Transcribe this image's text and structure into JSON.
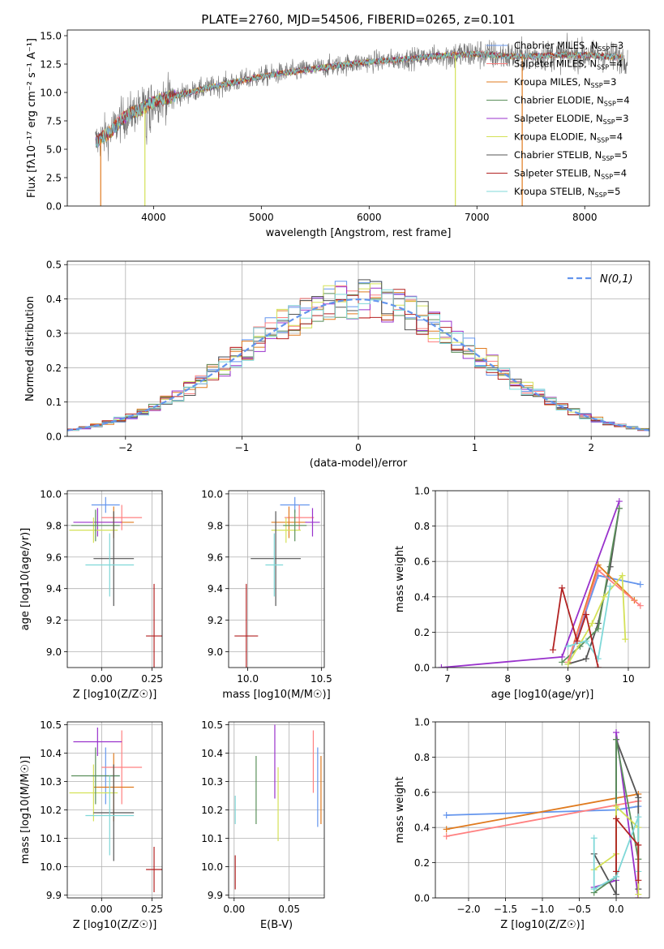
{
  "chart_data": [
    {
      "id": "spectrum",
      "type": "line",
      "title": "PLATE=2760, MJD=54506, FIBERID=0265, z=0.101",
      "xlabel": "wavelength [Angstrom, rest frame]",
      "ylabel": "Flux [fλ10⁻¹⁷ erg cm⁻² s⁻¹ A⁻¹]",
      "xlim": [
        3200,
        8600
      ],
      "ylim": [
        0,
        15.5
      ],
      "xticks": [
        4000,
        5000,
        6000,
        7000,
        8000
      ],
      "yticks": [
        0.0,
        2.5,
        5.0,
        7.5,
        10.0,
        12.5,
        15.0
      ],
      "grid": false,
      "legend_position": "top-right",
      "continuum": {
        "x": [
          3460,
          3600,
          3700,
          3800,
          3900,
          4000,
          4200,
          4500,
          4800,
          5000,
          5200,
          5500,
          5800,
          6000,
          6300,
          6600,
          7000,
          7300,
          7500,
          7800,
          8000,
          8200,
          8400
        ],
        "y": [
          5.6,
          6.5,
          7.6,
          8.2,
          8.6,
          9.2,
          9.7,
          10.4,
          11.0,
          11.4,
          11.7,
          12.1,
          12.5,
          12.7,
          12.9,
          13.2,
          13.4,
          13.2,
          13.2,
          13.3,
          13.3,
          13.2,
          13.0
        ]
      },
      "series": [
        {
          "name": "Chabrier MILES, N_SSP=3",
          "color": "#6495ed"
        },
        {
          "name": "Salpeter MILES, N_SSP=4",
          "color": "#ff8080"
        },
        {
          "name": "Kroupa MILES, N_SSP=3",
          "color": "#e07b1f"
        },
        {
          "name": "Chabrier ELODIE, N_SSP=4",
          "color": "#5a8f5a"
        },
        {
          "name": "Salpeter ELODIE, N_SSP=3",
          "color": "#9932cc"
        },
        {
          "name": "Kroupa ELODIE, N_SSP=4",
          "color": "#d4e157"
        },
        {
          "name": "Chabrier STELIB, N_SSP=5",
          "color": "#555555"
        },
        {
          "name": "Salpeter STELIB, N_SSP=4",
          "color": "#b22222"
        },
        {
          "name": "Kroupa STELIB, N_SSP=5",
          "color": "#7fd8d8"
        }
      ]
    },
    {
      "id": "residuals",
      "type": "histogram",
      "xlabel": "(data-model)/error",
      "ylabel": "Normed distribution",
      "xlim": [
        -2.5,
        2.5
      ],
      "ylim": [
        0,
        0.51
      ],
      "xticks": [
        -2,
        -1,
        0,
        1,
        2
      ],
      "yticks": [
        0.0,
        0.1,
        0.2,
        0.3,
        0.4,
        0.5
      ],
      "grid": true,
      "legend_position": "top-right",
      "reference": {
        "name": "N(0,1)",
        "color": "#6495ed",
        "mean": 0,
        "sigma": 1
      }
    },
    {
      "id": "age_vs_z",
      "type": "errorbar",
      "xlabel": "Z [log10(Z/Z☉)]",
      "ylabel": "age [log10(age/yr)]",
      "xlim": [
        -0.17,
        0.3
      ],
      "ylim": [
        8.9,
        10.02
      ],
      "xticks": [
        0.0,
        0.25
      ],
      "yticks": [
        9.0,
        9.2,
        9.4,
        9.6,
        9.8,
        10.0
      ],
      "grid": true,
      "points": [
        {
          "x": 0.02,
          "xerr": 0.07,
          "y": 9.93,
          "yerr": 0.05,
          "color": "#6495ed"
        },
        {
          "x": 0.1,
          "xerr": 0.1,
          "y": 9.85,
          "yerr": 0.08,
          "color": "#ff8080"
        },
        {
          "x": 0.06,
          "xerr": 0.1,
          "y": 9.82,
          "yerr": 0.1,
          "color": "#e07b1f"
        },
        {
          "x": -0.02,
          "xerr": 0.12,
          "y": 9.82,
          "yerr": 0.09,
          "color": "#9932cc"
        },
        {
          "x": -0.04,
          "xerr": 0.12,
          "y": 9.77,
          "yerr": 0.08,
          "color": "#d4e157"
        },
        {
          "x": -0.03,
          "xerr": 0.12,
          "y": 9.8,
          "yerr": 0.1,
          "color": "#5a8f5a"
        },
        {
          "x": 0.06,
          "xerr": 0.1,
          "y": 9.59,
          "yerr": 0.3,
          "color": "#555555"
        },
        {
          "x": 0.04,
          "xerr": 0.12,
          "y": 9.55,
          "yerr": 0.2,
          "color": "#7fd8d8"
        },
        {
          "x": 0.26,
          "xerr": 0.04,
          "y": 9.1,
          "yerr": 0.33,
          "color": "#b22222"
        }
      ]
    },
    {
      "id": "age_vs_mass",
      "type": "errorbar",
      "xlabel": "mass [log10(M/M☉)]",
      "ylabel": "",
      "xlim": [
        9.87,
        10.52
      ],
      "ylim": [
        8.9,
        10.02
      ],
      "xticks": [
        10.0,
        10.5
      ],
      "yticks": [
        9.0,
        9.2,
        9.4,
        9.6,
        9.8,
        10.0
      ],
      "grid": true,
      "points": [
        {
          "x": 10.32,
          "xerr": 0.1,
          "y": 9.93,
          "yerr": 0.05,
          "color": "#6495ed"
        },
        {
          "x": 10.35,
          "xerr": 0.1,
          "y": 9.85,
          "yerr": 0.08,
          "color": "#ff8080"
        },
        {
          "x": 10.28,
          "xerr": 0.12,
          "y": 9.82,
          "yerr": 0.1,
          "color": "#e07b1f"
        },
        {
          "x": 10.44,
          "xerr": 0.05,
          "y": 9.82,
          "yerr": 0.09,
          "color": "#9932cc"
        },
        {
          "x": 10.26,
          "xerr": 0.1,
          "y": 9.77,
          "yerr": 0.08,
          "color": "#d4e157"
        },
        {
          "x": 10.32,
          "xerr": 0.08,
          "y": 9.8,
          "yerr": 0.1,
          "color": "#5a8f5a"
        },
        {
          "x": 10.19,
          "xerr": 0.17,
          "y": 9.59,
          "yerr": 0.3,
          "color": "#555555"
        },
        {
          "x": 10.18,
          "xerr": 0.06,
          "y": 9.55,
          "yerr": 0.2,
          "color": "#7fd8d8"
        },
        {
          "x": 9.99,
          "xerr": 0.08,
          "y": 9.1,
          "yerr": 0.33,
          "color": "#b22222"
        }
      ]
    },
    {
      "id": "weight_vs_age",
      "type": "line",
      "xlabel": "age [log10(age/yr)]",
      "ylabel": "mass weight",
      "xlim": [
        6.8,
        10.35
      ],
      "ylim": [
        0,
        1.0
      ],
      "xticks": [
        7,
        8,
        9,
        10
      ],
      "yticks": [
        0.0,
        0.2,
        0.4,
        0.6,
        0.8,
        1.0
      ],
      "grid": true,
      "series": [
        {
          "color": "#9932cc",
          "x": [
            6.9,
            8.9,
            9.85
          ],
          "y": [
            0.0,
            0.06,
            0.94
          ]
        },
        {
          "color": "#555555",
          "x": [
            9.0,
            9.3,
            9.5,
            9.7,
            9.85
          ],
          "y": [
            0.02,
            0.05,
            0.25,
            0.57,
            0.9
          ]
        },
        {
          "color": "#5a8f5a",
          "x": [
            8.9,
            9.2,
            9.5,
            9.85
          ],
          "y": [
            0.03,
            0.12,
            0.22,
            0.9
          ]
        },
        {
          "color": "#6495ed",
          "x": [
            9.0,
            9.5,
            10.2
          ],
          "y": [
            0.02,
            0.52,
            0.47
          ]
        },
        {
          "color": "#e07b1f",
          "x": [
            9.0,
            9.5,
            10.1
          ],
          "y": [
            0.03,
            0.58,
            0.38
          ]
        },
        {
          "color": "#ff8080",
          "x": [
            9.0,
            9.5,
            10.2
          ],
          "y": [
            0.03,
            0.55,
            0.35
          ]
        },
        {
          "color": "#d4e157",
          "x": [
            9.0,
            9.4,
            9.6,
            9.9,
            9.95
          ],
          "y": [
            0.02,
            0.25,
            0.4,
            0.52,
            0.16
          ]
        },
        {
          "color": "#7fd8d8",
          "x": [
            9.0,
            9.3,
            9.5,
            9.7
          ],
          "y": [
            0.12,
            0.15,
            0.05,
            0.46
          ]
        },
        {
          "color": "#b22222",
          "x": [
            8.75,
            8.9,
            9.15,
            9.3,
            9.5
          ],
          "y": [
            0.1,
            0.45,
            0.15,
            0.3,
            0.0
          ]
        }
      ]
    },
    {
      "id": "mass_vs_z",
      "type": "errorbar",
      "xlabel": "Z [log10(Z/Z☉)]",
      "ylabel": "mass [log10(M/M☉)]",
      "xlim": [
        -0.17,
        0.3
      ],
      "ylim": [
        9.89,
        10.51
      ],
      "xticks": [
        0.0,
        0.25
      ],
      "yticks": [
        9.9,
        10.0,
        10.1,
        10.2,
        10.3,
        10.4,
        10.5
      ],
      "grid": true,
      "points": [
        {
          "x": 0.02,
          "xerr": 0.07,
          "y": 10.32,
          "yerr": 0.1,
          "color": "#6495ed"
        },
        {
          "x": 0.1,
          "xerr": 0.1,
          "y": 10.35,
          "yerr": 0.13,
          "color": "#ff8080"
        },
        {
          "x": 0.06,
          "xerr": 0.1,
          "y": 10.28,
          "yerr": 0.12,
          "color": "#e07b1f"
        },
        {
          "x": -0.02,
          "xerr": 0.12,
          "y": 10.44,
          "yerr": 0.05,
          "color": "#9932cc"
        },
        {
          "x": -0.04,
          "xerr": 0.12,
          "y": 10.26,
          "yerr": 0.1,
          "color": "#d4e157"
        },
        {
          "x": -0.03,
          "xerr": 0.12,
          "y": 10.32,
          "yerr": 0.1,
          "color": "#5a8f5a"
        },
        {
          "x": 0.06,
          "xerr": 0.1,
          "y": 10.19,
          "yerr": 0.17,
          "color": "#555555"
        },
        {
          "x": 0.04,
          "xerr": 0.12,
          "y": 10.18,
          "yerr": 0.14,
          "color": "#7fd8d8"
        },
        {
          "x": 0.26,
          "xerr": 0.04,
          "y": 9.99,
          "yerr": 0.08,
          "color": "#b22222"
        }
      ]
    },
    {
      "id": "mass_vs_ebv",
      "type": "errorbar",
      "xlabel": "E(B-V)",
      "ylabel": "",
      "xlim": [
        -0.005,
        0.082
      ],
      "ylim": [
        9.89,
        10.51
      ],
      "xticks": [
        0.0,
        0.05
      ],
      "yticks": [
        9.9,
        10.0,
        10.1,
        10.2,
        10.3,
        10.4,
        10.5
      ],
      "grid": true,
      "points": [
        {
          "x": 0.001,
          "y": 10.2,
          "yerr": 0.05,
          "color": "#7fd8d8"
        },
        {
          "x": 0.001,
          "y": 9.98,
          "yerr": 0.06,
          "color": "#b22222"
        },
        {
          "x": 0.02,
          "y": 10.27,
          "yerr": 0.12,
          "color": "#5a8f5a"
        },
        {
          "x": 0.037,
          "y": 10.37,
          "yerr": 0.13,
          "color": "#9932cc"
        },
        {
          "x": 0.04,
          "y": 10.22,
          "yerr": 0.13,
          "color": "#d4e157"
        },
        {
          "x": 0.072,
          "y": 10.37,
          "yerr": 0.11,
          "color": "#ff8080"
        },
        {
          "x": 0.076,
          "y": 10.28,
          "yerr": 0.14,
          "color": "#6495ed"
        },
        {
          "x": 0.079,
          "y": 10.27,
          "yerr": 0.12,
          "color": "#e07b1f"
        }
      ]
    },
    {
      "id": "weight_vs_z",
      "type": "line",
      "xlabel": "Z [log10(Z/Z☉)]",
      "ylabel": "mass weight",
      "xlim": [
        -2.45,
        0.45
      ],
      "ylim": [
        0,
        1.0
      ],
      "xticks": [
        -2.0,
        -1.5,
        -1.0,
        -0.5,
        0.0
      ],
      "yticks": [
        0.0,
        0.2,
        0.4,
        0.6,
        0.8,
        1.0
      ],
      "grid": true,
      "series": [
        {
          "color": "#6495ed",
          "x": [
            -2.3,
            0.0,
            0.3
          ],
          "y": [
            0.47,
            0.5,
            0.52
          ]
        },
        {
          "color": "#e07b1f",
          "x": [
            -2.3,
            0.3
          ],
          "y": [
            0.39,
            0.59
          ]
        },
        {
          "color": "#ff8080",
          "x": [
            -2.3,
            0.3
          ],
          "y": [
            0.35,
            0.55
          ]
        },
        {
          "color": "#9932cc",
          "x": [
            -0.3,
            0.0,
            0.0,
            0.3
          ],
          "y": [
            0.06,
            0.1,
            0.94,
            0.0
          ]
        },
        {
          "color": "#555555",
          "x": [
            -0.3,
            0.0,
            0.0,
            0.3,
            0.3
          ],
          "y": [
            0.25,
            0.02,
            0.9,
            0.57,
            0.05
          ]
        },
        {
          "color": "#5a8f5a",
          "x": [
            -0.3,
            0.0,
            0.0,
            0.3
          ],
          "y": [
            0.03,
            0.12,
            0.9,
            0.22
          ]
        },
        {
          "color": "#d4e157",
          "x": [
            -0.3,
            0.0,
            0.0,
            0.3,
            0.3
          ],
          "y": [
            0.16,
            0.25,
            0.52,
            0.4,
            0.02
          ]
        },
        {
          "color": "#7fd8d8",
          "x": [
            -0.3,
            -0.3,
            0.0,
            0.3,
            0.3
          ],
          "y": [
            0.34,
            0.05,
            0.12,
            0.46,
            0.15
          ]
        },
        {
          "color": "#b22222",
          "x": [
            0.0,
            0.0,
            0.3,
            0.3
          ],
          "y": [
            0.15,
            0.45,
            0.3,
            0.1
          ]
        }
      ]
    }
  ]
}
